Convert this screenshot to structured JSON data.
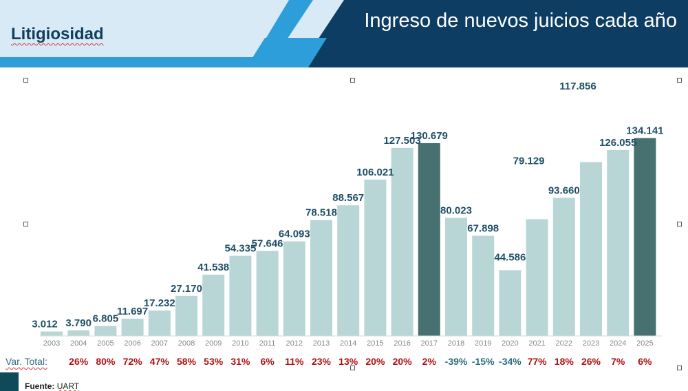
{
  "header": {
    "brand": "Litigiosidad",
    "title": "Ingreso de nuevos juicios cada año"
  },
  "chart_data": {
    "type": "bar",
    "categories": [
      "2003",
      "2004",
      "2005",
      "2006",
      "2007",
      "2008",
      "2009",
      "2010",
      "2011",
      "2012",
      "2013",
      "2014",
      "2015",
      "2016",
      "2017",
      "2018",
      "2019",
      "2020",
      "2021",
      "2022",
      "2023",
      "2024",
      "2025"
    ],
    "values": [
      3012,
      3790,
      6805,
      11697,
      17232,
      27170,
      41538,
      54335,
      57646,
      64093,
      78518,
      88567,
      106021,
      127503,
      130679,
      80023,
      67898,
      44586,
      79129,
      93660,
      117856,
      126055,
      134141
    ],
    "value_labels": [
      "3.012",
      "3.790",
      "6.805",
      "11.697",
      "17.232",
      "27.170",
      "41.538",
      "54.335",
      "57.646",
      "64.093",
      "78.518",
      "88.567",
      "106.021",
      "127.503",
      "130.679",
      "80.023",
      "67.898",
      "44.586",
      "79.129",
      "93.660",
      "117.856",
      "126.055",
      "134.141"
    ],
    "highlighted_categories": [
      "2017",
      "2025"
    ],
    "ylim": [
      0,
      140000
    ],
    "grid": false,
    "colors": {
      "bar": "#b9d6d7",
      "highlight": "#477171",
      "value_label": "#1d4f66",
      "axis_label": "#888888"
    }
  },
  "variation": {
    "label": "Var. Total:",
    "values": [
      "",
      "26%",
      "80%",
      "72%",
      "47%",
      "58%",
      "53%",
      "31%",
      "6%",
      "11%",
      "23%",
      "13%",
      "20%",
      "20%",
      "2%",
      "-39%",
      "-15%",
      "-34%",
      "77%",
      "18%",
      "26%",
      "7%",
      "6%"
    ],
    "colors": {
      "positive": "#b01010",
      "negative": "#2a6a7e"
    }
  },
  "footer": {
    "source_label": "Fuente:",
    "source_value": "UART"
  }
}
